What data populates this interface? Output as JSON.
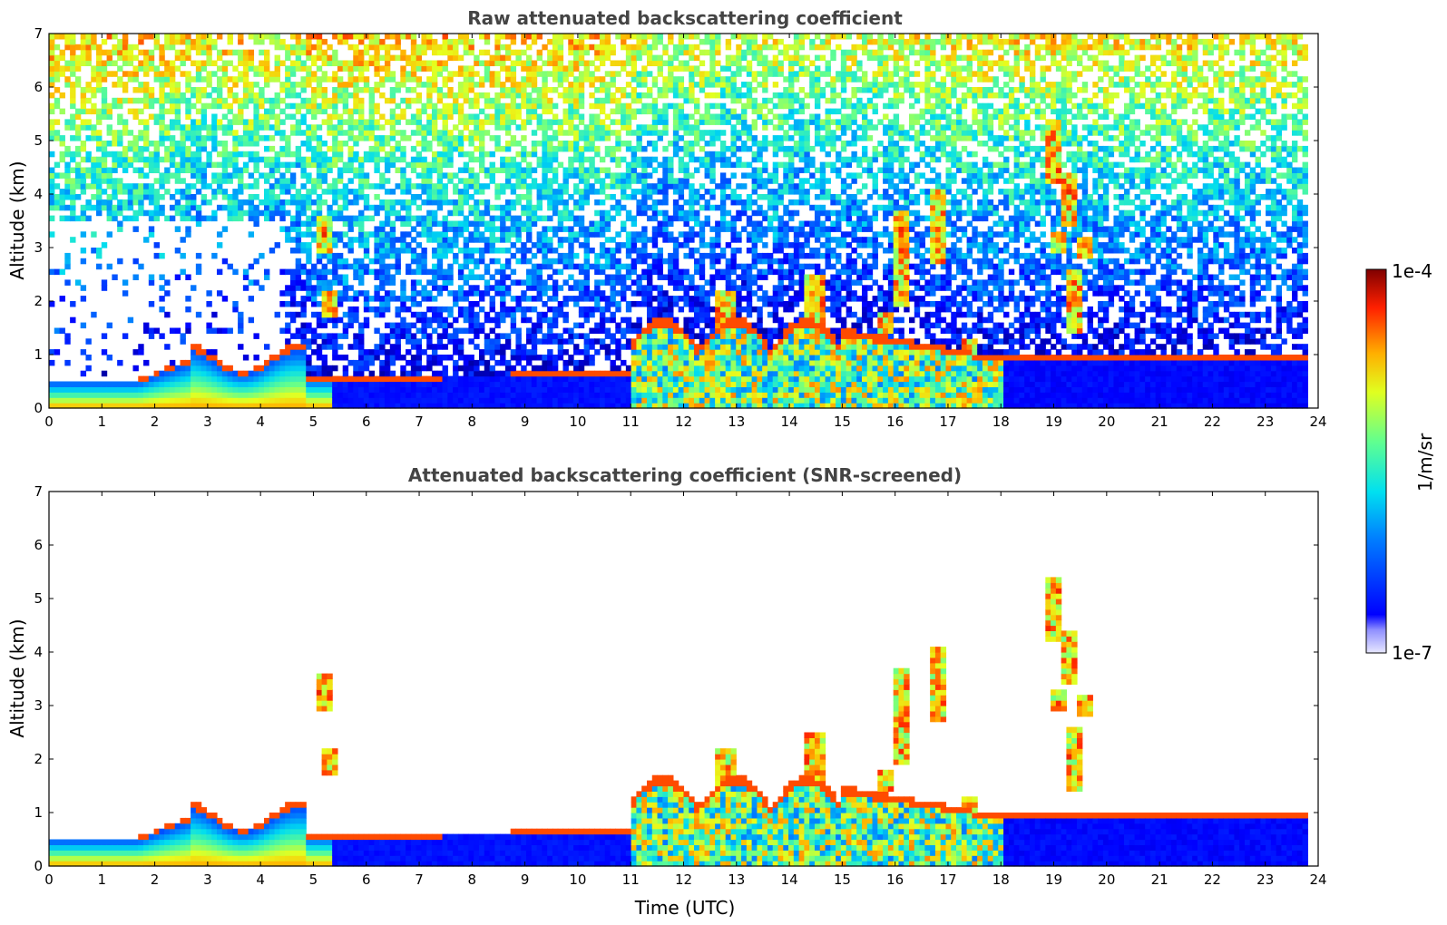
{
  "chart_data": [
    {
      "type": "heatmap",
      "title": "Raw attenuated backscattering coefficient",
      "xlabel": "",
      "ylabel": "Altitude (km)",
      "xlim": [
        0,
        24
      ],
      "ylim": [
        0,
        7
      ],
      "xticks": [
        "0",
        "1",
        "2",
        "3",
        "4",
        "5",
        "6",
        "7",
        "8",
        "9",
        "10",
        "11",
        "12",
        "13",
        "14",
        "15",
        "16",
        "17",
        "18",
        "19",
        "20",
        "21",
        "22",
        "23",
        "24"
      ],
      "yticks": [
        "0",
        "1",
        "2",
        "3",
        "4",
        "5",
        "6",
        "7"
      ],
      "colorscale": "jet",
      "features": [
        {
          "t": [
            0,
            1.7
          ],
          "top_km": 0.55,
          "desc": "boundary layer"
        },
        {
          "t": [
            1.7,
            4.9
          ],
          "top_km": 1.0,
          "desc": "rising boundary layer"
        },
        {
          "t": [
            5.0,
            5.5
          ],
          "alt_km": 3.3,
          "desc": "elevated aerosol"
        },
        {
          "t": [
            11,
            15
          ],
          "alt_km": [
            1,
            2.3
          ],
          "desc": "clouds"
        },
        {
          "t": [
            16,
            17
          ],
          "alt_km": [
            2.5,
            4.1
          ],
          "desc": "mid-level clouds"
        },
        {
          "t": [
            19,
            20
          ],
          "alt_km": [
            2.8,
            5.3
          ],
          "desc": "mid-level clouds"
        }
      ]
    },
    {
      "type": "heatmap",
      "title": "Attenuated backscattering coefficient (SNR-screened)",
      "xlabel": "Time (UTC)",
      "ylabel": "Altitude (km)",
      "xlim": [
        0,
        24
      ],
      "ylim": [
        0,
        7
      ],
      "xticks": [
        "0",
        "1",
        "2",
        "3",
        "4",
        "5",
        "6",
        "7",
        "8",
        "9",
        "10",
        "11",
        "12",
        "13",
        "14",
        "15",
        "16",
        "17",
        "18",
        "19",
        "20",
        "21",
        "22",
        "23",
        "24"
      ],
      "yticks": [
        "0",
        "1",
        "2",
        "3",
        "4",
        "5",
        "6",
        "7"
      ],
      "colorscale": "jet"
    }
  ],
  "colorbar": {
    "label": "1/m/sr",
    "max_label": "1e-4",
    "min_label": "1e-7",
    "scale": "log",
    "range": [
      1e-07,
      0.0001
    ]
  }
}
